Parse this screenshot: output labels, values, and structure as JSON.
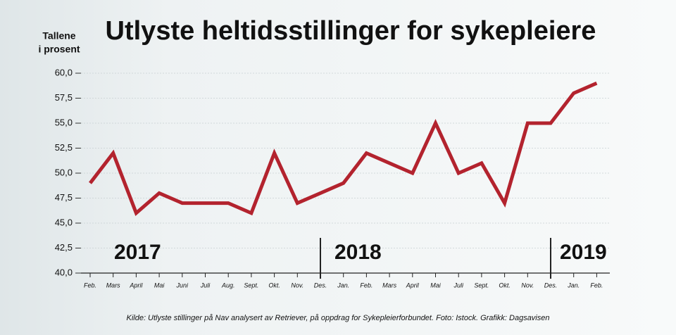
{
  "chart_data": {
    "type": "line",
    "title": "Utlyste heltidsstillinger for sykepleiere",
    "y_label": [
      "Tallene",
      "i prosent"
    ],
    "categories": [
      "Feb.",
      "Mars",
      "April",
      "Mai",
      "Juni",
      "Juli",
      "Aug.",
      "Sept.",
      "Okt.",
      "Nov.",
      "Des.",
      "Jan.",
      "Feb.",
      "Mars",
      "April",
      "Mai",
      "Juli",
      "Sept.",
      "Okt.",
      "Nov.",
      "Des.",
      "Jan.",
      "Feb."
    ],
    "series": [
      {
        "name": "Utlyste heltidsstillinger",
        "color": "#b3232e",
        "values": [
          49,
          52,
          46,
          48,
          47,
          47,
          47,
          46,
          52,
          47,
          48,
          49,
          52,
          51,
          50,
          55,
          50,
          51,
          47,
          55,
          55,
          58,
          59
        ]
      }
    ],
    "ylim": [
      40,
      60
    ],
    "yticks": [
      {
        "value": 40,
        "label": "40,0"
      },
      {
        "value": 42.5,
        "label": "42,5"
      },
      {
        "value": 45,
        "label": "45,0"
      },
      {
        "value": 47.5,
        "label": "47,5"
      },
      {
        "value": 50,
        "label": "50,0"
      },
      {
        "value": 52.5,
        "label": "52,5"
      },
      {
        "value": 55,
        "label": "55,0"
      },
      {
        "value": 57.5,
        "label": "57,5"
      },
      {
        "value": 60,
        "label": "60,0"
      }
    ],
    "grid": true,
    "annotations": [
      "2017",
      "2018",
      "2019"
    ],
    "source": "Kilde: Utlyste stillinger på Nav analysert av Retriever, på oppdrag for Sykepleierforbundet. Foto: Istock. Grafikk: Dagsavisen"
  }
}
